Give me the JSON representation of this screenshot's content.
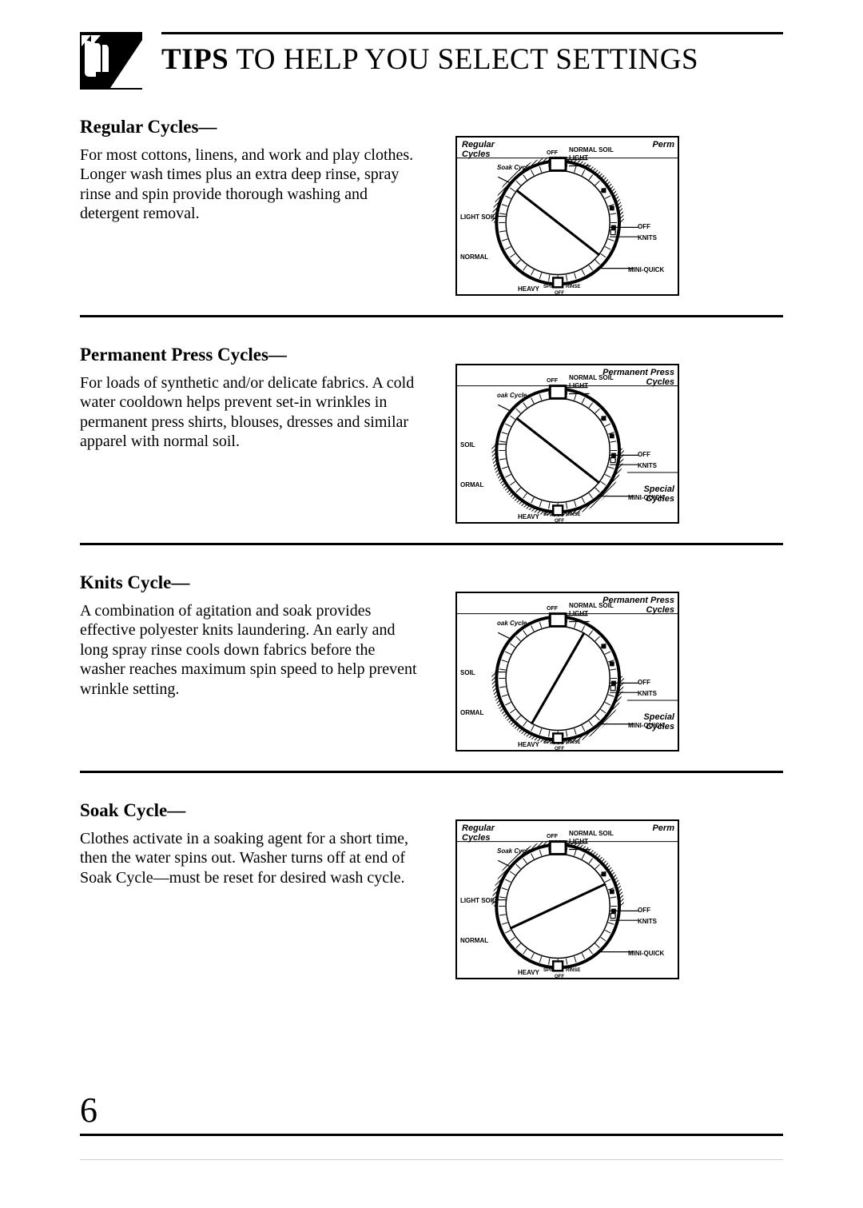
{
  "page": {
    "title_bold": "TIPS",
    "title_rest": " TO HELP YOU SELECT SETTINGS",
    "number": "6"
  },
  "sections": [
    {
      "heading": "Regular Cycles—",
      "body": "For most cottons, linens, and work and play clothes. Longer wash times plus an extra deep rinse, spray rinse and spin provide thorough washing and detergent  removal.",
      "dial": {
        "pointer_angle_deg": -52,
        "shade_start_deg": -90,
        "shade_end_deg": 90,
        "top_left_label": "Regular\nCycles",
        "top_left_style": "ital",
        "top_right_label": "Perm",
        "top_right_style": "ital",
        "bottom_right_label": "",
        "outer_labels": {
          "soak_cycle": "Soak Cycle",
          "light_soil": "LIGHT SOIL",
          "normal": "NORMAL",
          "heavy": "HEAVY",
          "off_top": "OFF",
          "normal_soil": "NORMAL SOIL",
          "light": "LIGHT",
          "off_right": "OFF",
          "knits": "KNITS",
          "mini_quick": "MINI-QUICK",
          "spin": "SPIN",
          "rinse": "RINSE",
          "off_bottom": "OFF"
        }
      }
    },
    {
      "heading": "Permanent Press Cycles—",
      "body": "For loads of synthetic and/or delicate fabrics. A cold water cooldown helps prevent set-in wrinkles in permanent press shirts, blouses, dresses and similar apparel with normal soil.",
      "dial": {
        "pointer_angle_deg": -52,
        "shade_start_deg": 88,
        "shade_end_deg": 275,
        "top_left_label": "",
        "top_left_style": "",
        "top_right_label": "Permanent  Press\nCycles",
        "top_right_style": "ital",
        "bottom_right_label": "Special\nCycles",
        "outer_labels": {
          "soak_cycle": "oak Cycle",
          "light_soil": "SOIL",
          "normal": "ORMAL",
          "heavy": "HEAVY",
          "off_top": "OFF",
          "normal_soil": "NORMAL SOIL",
          "light": "LIGHT",
          "off_right": "OFF",
          "knits": "KNITS",
          "mini_quick": "MINI-QUICK",
          "spin": "SPIN",
          "rinse": "RINSE",
          "off_bottom": "OFF"
        }
      }
    },
    {
      "heading": "Knits Cycle—",
      "body": "A combination of agitation and soak provides effective polyester knits laundering. An early and long spray rinse cools down fabrics before the washer reaches maximum spin speed to help prevent wrinkle setting.",
      "dial": {
        "pointer_angle_deg": 30,
        "shade_start_deg": 88,
        "shade_end_deg": 275,
        "top_left_label": "",
        "top_left_style": "",
        "top_right_label": "Permanent  Press\nCycles",
        "top_right_style": "ital",
        "bottom_right_label": "Special\nCycles",
        "outer_labels": {
          "soak_cycle": "oak Cycle",
          "light_soil": "SOIL",
          "normal": "ORMAL",
          "heavy": "HEAVY",
          "off_top": "OFF",
          "normal_soil": "NORMAL SOIL",
          "light": "LIGHT",
          "off_right": "OFF",
          "knits": "KNITS",
          "mini_quick": "MINI-QUICK",
          "spin": "SPIN",
          "rinse": "RINSE",
          "off_bottom": "OFF"
        }
      }
    },
    {
      "heading": "Soak Cycle—",
      "body": "Clothes activate in a soaking agent for a short time, then the water spins out. Washer turns off at end of Soak Cycle—must be reset for desired wash cycle.",
      "dial": {
        "pointer_angle_deg": -115,
        "shade_start_deg": -90,
        "shade_end_deg": 90,
        "top_left_label": "Regular\nCycles",
        "top_left_style": "ital",
        "top_right_label": "Perm",
        "top_right_style": "ital",
        "bottom_right_label": "",
        "outer_labels": {
          "soak_cycle": "Soak Cycle",
          "light_soil": "LIGHT SOIL",
          "normal": "NORMAL",
          "heavy": "HEAVY",
          "off_top": "OFF",
          "normal_soil": "NORMAL SOIL",
          "light": "LIGHT",
          "off_right": "OFF",
          "knits": "KNITS",
          "mini_quick": "MINI-QUICK",
          "spin": "SPIN",
          "rinse": "RINSE",
          "off_bottom": "OFF"
        }
      }
    }
  ],
  "style": {
    "background": "#ffffff",
    "text_color": "#000000",
    "rule_color": "#000000",
    "dial_outline": "#000000",
    "dial_shade_fill": "#000000",
    "dial_shade_opacity_lines": true
  }
}
